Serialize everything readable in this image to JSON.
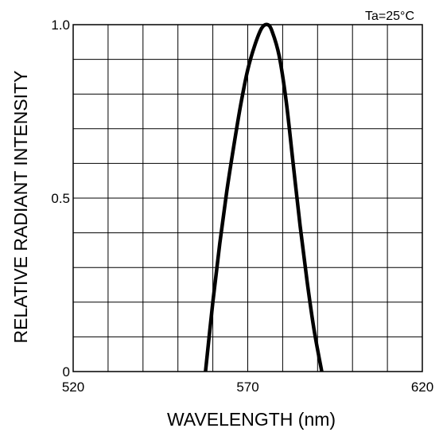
{
  "chart_data": {
    "type": "line",
    "title": "",
    "annotation": "Ta=25°C",
    "xlabel": "WAVELENGTH (nm)",
    "ylabel": "RELATIVE RADIANT INTENSITY",
    "xlim": [
      520,
      620
    ],
    "ylim": [
      0,
      1.0
    ],
    "x_ticks": [
      520,
      570,
      620
    ],
    "y_ticks": [
      0,
      0.5,
      1.0
    ],
    "x_tick_labels": [
      "520",
      "570",
      "620"
    ],
    "y_tick_labels": [
      "0",
      "0.5",
      "1.0"
    ],
    "grid": true,
    "grid_x_divisions": 10,
    "grid_y_divisions": 10,
    "line_color": "#000000",
    "series": [
      {
        "x": [
          557.9,
          560,
          562,
          564,
          566,
          568,
          570,
          572,
          574,
          575.7,
          577,
          579,
          581,
          583,
          585,
          587,
          589,
          591.2
        ],
        "y": [
          0.0,
          0.2,
          0.37,
          0.52,
          0.65,
          0.77,
          0.87,
          0.94,
          0.99,
          1.0,
          0.98,
          0.91,
          0.78,
          0.6,
          0.42,
          0.26,
          0.12,
          0.0
        ]
      }
    ]
  }
}
